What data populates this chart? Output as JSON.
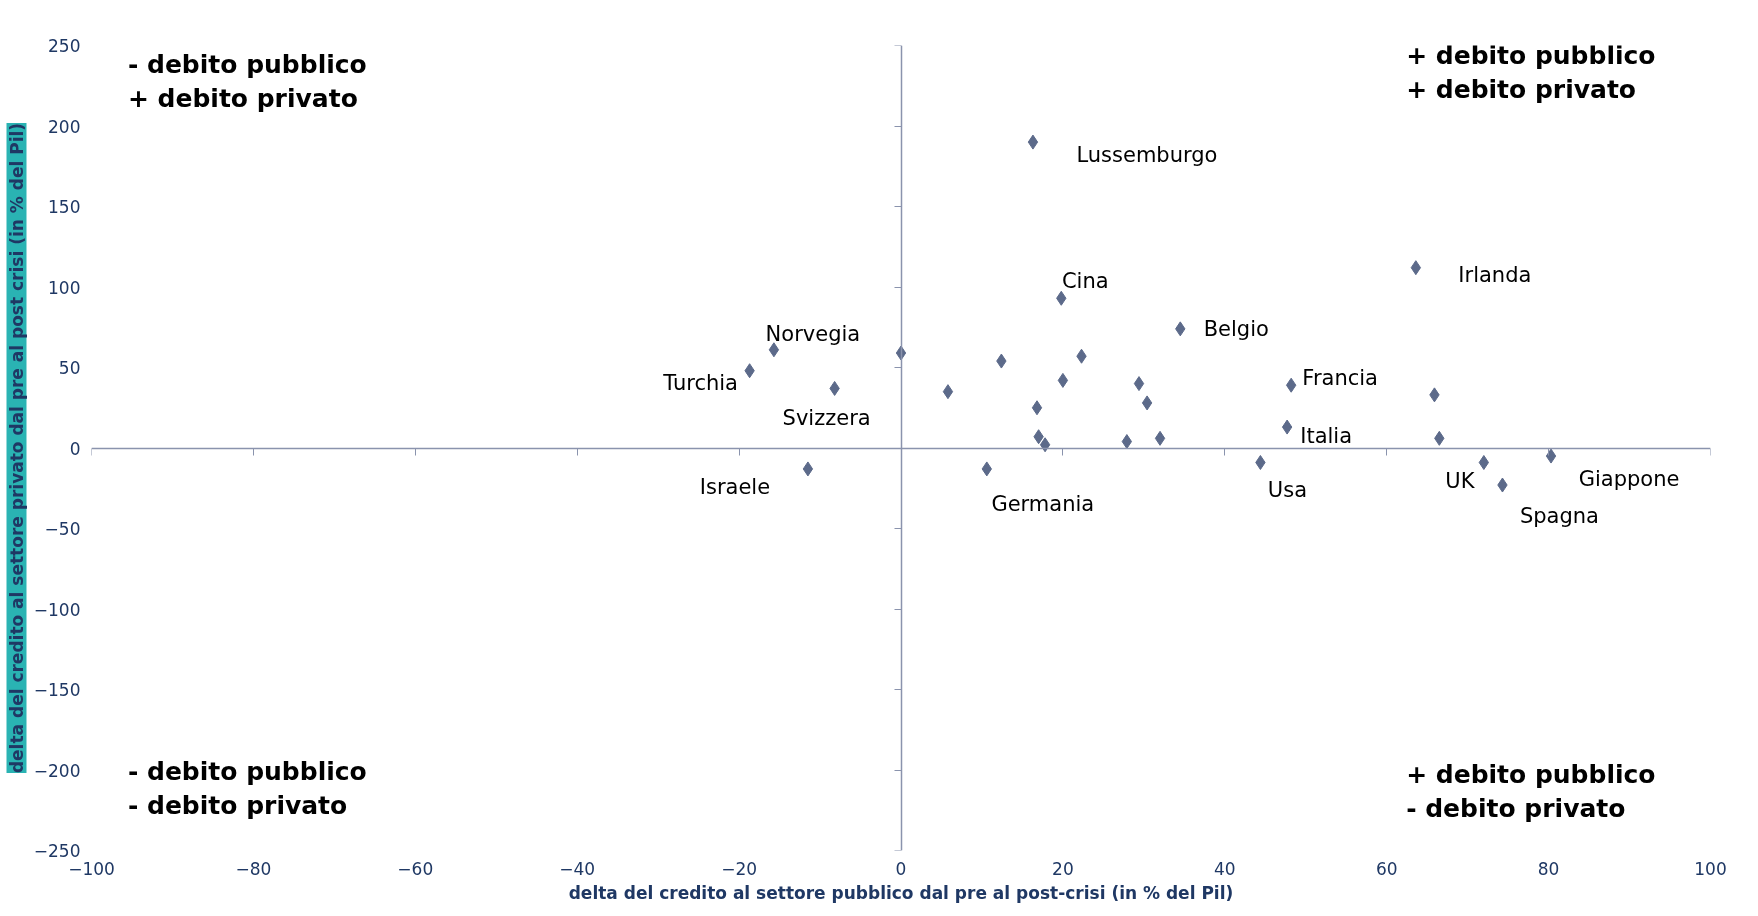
{
  "chart_data": {
    "type": "scatter",
    "xlabel": "delta del credito al settore pubblico dal pre al post-crisi (in % del Pil)",
    "ylabel": "delta del credito al settore privato dal pre al post crisi (in % del Pil)",
    "xlim": [
      -100,
      100
    ],
    "ylim": [
      -250,
      250
    ],
    "xticks": [
      -100,
      -80,
      -60,
      -40,
      -20,
      0,
      20,
      40,
      60,
      80,
      100
    ],
    "yticks": [
      -250,
      -200,
      -150,
      -100,
      -50,
      0,
      50,
      100,
      150,
      200,
      250
    ],
    "marker": "diamond",
    "series": [
      {
        "color": "#5c6a8a",
        "x": [
          16.3,
          19.8,
          34.5,
          63.6,
          -15.7,
          -18.7,
          -8.2,
          -11.5,
          0,
          5.8,
          12.4,
          22.3,
          20,
          29.4,
          30.4,
          16.8,
          17,
          17.8,
          27.9,
          32,
          10.6,
          48.2,
          47.7,
          44.4,
          65.9,
          66.5,
          72,
          74.3,
          80.3
        ],
        "values": [
          190,
          93,
          74,
          112,
          61,
          48,
          37,
          -13,
          59,
          35,
          54,
          57,
          42,
          40,
          28,
          25,
          7,
          2,
          4,
          6,
          -13,
          39,
          13,
          -9,
          33,
          6,
          -9,
          -23,
          -5
        ]
      }
    ],
    "annotations": [
      "- debito pubblico\n+ debito privato",
      "+ debito pubblico\n+ debito privato",
      "- debito pubblico\n- debito privato",
      "+ debito pubblico\n- debito privato",
      {
        "text": "Lussemburgo",
        "x": 16.3,
        "y": 190
      },
      {
        "text": "Cina",
        "x": 19.8,
        "y": 93
      },
      {
        "text": "Belgio",
        "x": 34.5,
        "y": 74
      },
      {
        "text": "Irlanda",
        "x": 63.6,
        "y": 112
      },
      {
        "text": "Norvegia",
        "x": -15.7,
        "y": 61
      },
      {
        "text": "Turchia",
        "x": -18.7,
        "y": 48
      },
      {
        "text": "Svizzera",
        "x": -8.2,
        "y": 37
      },
      {
        "text": "Israele",
        "x": -11.5,
        "y": -13
      },
      {
        "text": "Germania",
        "x": 10.6,
        "y": -13
      },
      {
        "text": "Francia",
        "x": 48.2,
        "y": 39
      },
      {
        "text": "Italia",
        "x": 47.7,
        "y": 13
      },
      {
        "text": "Usa",
        "x": 44.4,
        "y": -9
      },
      {
        "text": "UK",
        "x": 72,
        "y": -9
      },
      {
        "text": "Spagna",
        "x": 74.3,
        "y": -23
      },
      {
        "text": "Giappone",
        "x": 80.3,
        "y": -5
      }
    ]
  }
}
